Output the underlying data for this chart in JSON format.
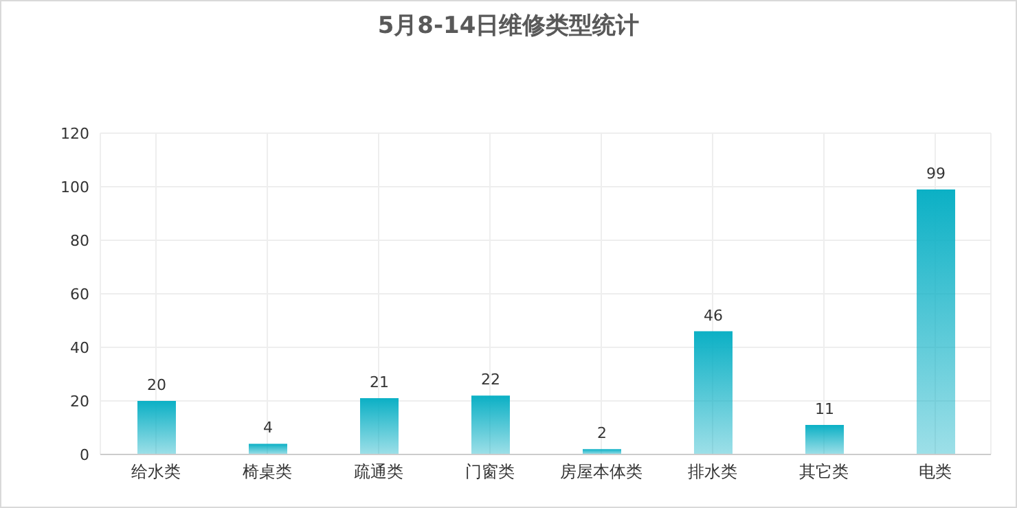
{
  "chart_data": {
    "type": "bar",
    "title": "5月8-14日维修类型统计",
    "categories": [
      "给水类",
      "椅桌类",
      "疏通类",
      "门窗类",
      "房屋本体类",
      "排水类",
      "其它类",
      "电类"
    ],
    "values": [
      20,
      4,
      21,
      22,
      2,
      46,
      11,
      99
    ],
    "color": "#0bb0c5",
    "ylim": [
      0,
      120
    ],
    "yticks": [
      0,
      20,
      40,
      60,
      80,
      100,
      120
    ],
    "grid": true,
    "data_labels": true
  }
}
